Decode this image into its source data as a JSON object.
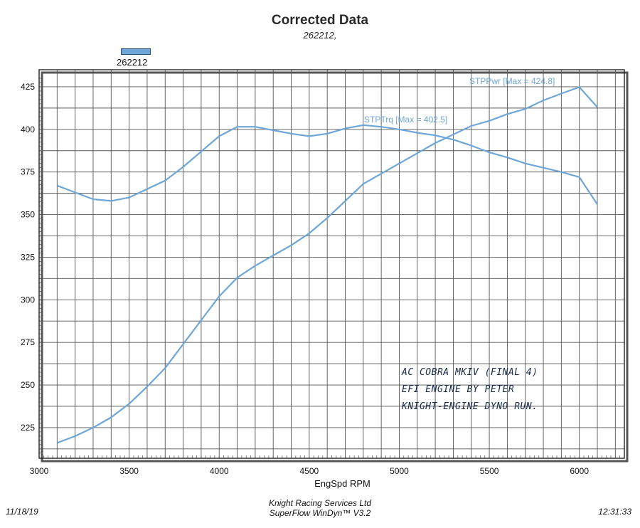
{
  "page": {
    "date": "11/18/19",
    "company": "Knight Racing Services Ltd",
    "software": "SuperFlow WinDyn™ V3.2",
    "time": "12:31:33"
  },
  "note": {
    "line1": "AC COBRA MKIV (FINAL 4)",
    "line2": "EFI ENGINE BY PETER",
    "line3": "KNIGHT-ENGINE DYNO RUN."
  },
  "colors": {
    "series": "#6ea6d8",
    "grid": "#555555",
    "border": "#222222"
  },
  "chart_data": {
    "type": "line",
    "title": "Corrected Data",
    "subtitle": "262212,",
    "legend": [
      "262212"
    ],
    "legend_position": "top-left",
    "xlabel": "EngSpd RPM",
    "ylabel": "",
    "xlim": [
      3000,
      6250
    ],
    "ylim": [
      207,
      435
    ],
    "x_ticks": [
      3000,
      3500,
      4000,
      4500,
      5000,
      5500,
      6000
    ],
    "y_ticks": [
      225,
      250,
      275,
      300,
      325,
      350,
      375,
      400,
      425
    ],
    "grid": true,
    "series": [
      {
        "name": "STPPwr",
        "label": "STPPwr [Max = 424.8]",
        "x": [
          3100,
          3200,
          3300,
          3400,
          3500,
          3600,
          3700,
          3800,
          3900,
          4000,
          4100,
          4200,
          4300,
          4400,
          4500,
          4600,
          4700,
          4800,
          4900,
          5000,
          5100,
          5200,
          5300,
          5400,
          5500,
          5600,
          5700,
          5800,
          5900,
          6000,
          6100
        ],
        "values": [
          216,
          220,
          225,
          231,
          239,
          249,
          260,
          274,
          288,
          302,
          313,
          320,
          326,
          332,
          339,
          348,
          358,
          368,
          374,
          380,
          386,
          392,
          397,
          402,
          405,
          409,
          412,
          417,
          421,
          424.8,
          413
        ]
      },
      {
        "name": "STPTrq",
        "label": "STPTrq [Max = 402.5]",
        "x": [
          3100,
          3200,
          3300,
          3400,
          3500,
          3600,
          3700,
          3800,
          3900,
          4000,
          4100,
          4200,
          4300,
          4400,
          4500,
          4600,
          4700,
          4800,
          4900,
          5000,
          5100,
          5200,
          5300,
          5400,
          5500,
          5600,
          5700,
          5800,
          5900,
          6000,
          6100
        ],
        "values": [
          367,
          363,
          359,
          358,
          360,
          365,
          370,
          378,
          387,
          396,
          401.5,
          401.5,
          399.5,
          397.5,
          396,
          397.5,
          400.5,
          402.5,
          401.5,
          400,
          398,
          396.5,
          394,
          390.5,
          386.5,
          383.5,
          380,
          377.5,
          375,
          372,
          356
        ]
      }
    ]
  }
}
